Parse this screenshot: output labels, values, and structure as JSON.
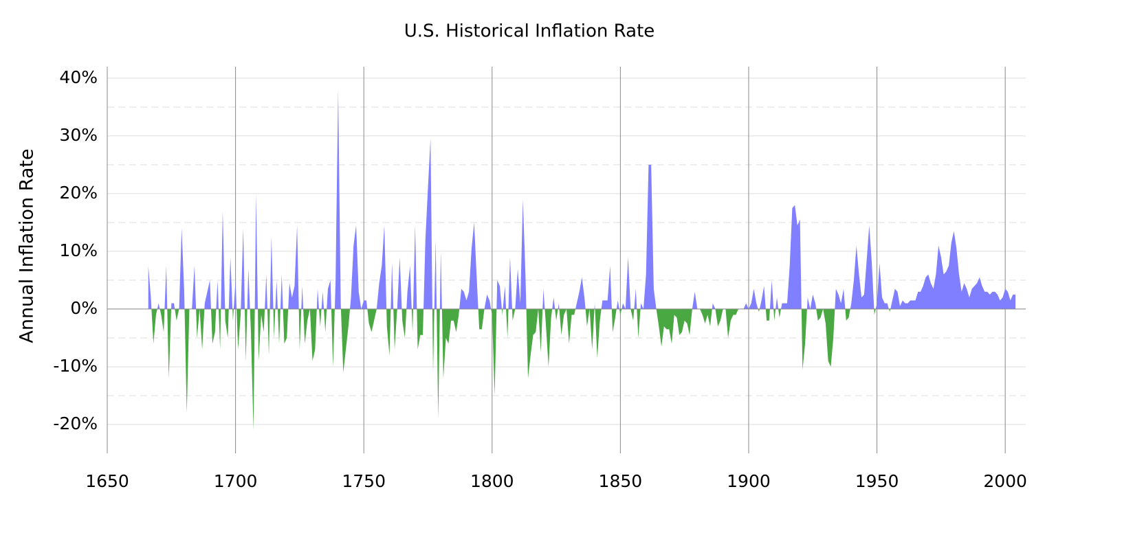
{
  "chart_data": {
    "type": "area",
    "title": "U.S. Historical Inflation Rate",
    "y_label": "Annual Inflation Rate",
    "xlim": [
      1650,
      2008
    ],
    "xticks": [
      1650,
      1700,
      1750,
      1800,
      1850,
      1900,
      1950,
      2000
    ],
    "ylim": [
      -25,
      42
    ],
    "yticks": [
      {
        "value": -20,
        "label": "-20%"
      },
      {
        "value": -10,
        "label": "-10%"
      },
      {
        "value": 0,
        "label": "0%"
      },
      {
        "value": 10,
        "label": "10%"
      },
      {
        "value": 20,
        "label": "20%"
      },
      {
        "value": 30,
        "label": "30%"
      },
      {
        "value": 40,
        "label": "40%"
      }
    ],
    "minor_yticks": [
      -15,
      -5,
      5,
      15,
      25,
      35
    ],
    "grid": true,
    "color": "#7f7fff",
    "negative_color": "#4aa842",
    "x": [
      1666,
      1667,
      1668,
      1669,
      1670,
      1671,
      1672,
      1673,
      1674,
      1675,
      1676,
      1677,
      1678,
      1679,
      1680,
      1681,
      1682,
      1683,
      1684,
      1685,
      1686,
      1687,
      1688,
      1689,
      1690,
      1691,
      1692,
      1693,
      1694,
      1695,
      1696,
      1697,
      1698,
      1699,
      1700,
      1701,
      1702,
      1703,
      1704,
      1705,
      1706,
      1707,
      1708,
      1709,
      1710,
      1711,
      1712,
      1713,
      1714,
      1715,
      1716,
      1717,
      1718,
      1719,
      1720,
      1721,
      1722,
      1723,
      1724,
      1725,
      1726,
      1727,
      1728,
      1729,
      1730,
      1731,
      1732,
      1733,
      1734,
      1735,
      1736,
      1737,
      1738,
      1739,
      1740,
      1741,
      1742,
      1743,
      1744,
      1745,
      1746,
      1747,
      1748,
      1749,
      1750,
      1751,
      1752,
      1753,
      1754,
      1755,
      1756,
      1757,
      1758,
      1759,
      1760,
      1761,
      1762,
      1763,
      1764,
      1765,
      1766,
      1767,
      1768,
      1769,
      1770,
      1771,
      1772,
      1773,
      1774,
      1775,
      1776,
      1777,
      1778,
      1779,
      1780,
      1781,
      1782,
      1783,
      1784,
      1785,
      1786,
      1787,
      1788,
      1789,
      1790,
      1791,
      1792,
      1793,
      1794,
      1795,
      1796,
      1797,
      1798,
      1799,
      1800,
      1801,
      1802,
      1803,
      1804,
      1805,
      1806,
      1807,
      1808,
      1809,
      1810,
      1811,
      1812,
      1813,
      1814,
      1815,
      1816,
      1817,
      1818,
      1819,
      1820,
      1821,
      1822,
      1823,
      1824,
      1825,
      1826,
      1827,
      1828,
      1829,
      1830,
      1831,
      1832,
      1833,
      1834,
      1835,
      1836,
      1837,
      1838,
      1839,
      1840,
      1841,
      1842,
      1843,
      1844,
      1845,
      1846,
      1847,
      1848,
      1849,
      1850,
      1851,
      1852,
      1853,
      1854,
      1855,
      1856,
      1857,
      1858,
      1859,
      1860,
      1861,
      1862,
      1863,
      1864,
      1865,
      1866,
      1867,
      1868,
      1869,
      1870,
      1871,
      1872,
      1873,
      1874,
      1875,
      1876,
      1877,
      1878,
      1879,
      1880,
      1881,
      1882,
      1883,
      1884,
      1885,
      1886,
      1887,
      1888,
      1889,
      1890,
      1891,
      1892,
      1893,
      1894,
      1895,
      1896,
      1897,
      1898,
      1899,
      1900,
      1901,
      1902,
      1903,
      1904,
      1905,
      1906,
      1907,
      1908,
      1909,
      1910,
      1911,
      1912,
      1913,
      1914,
      1915,
      1916,
      1917,
      1918,
      1919,
      1920,
      1921,
      1922,
      1923,
      1924,
      1925,
      1926,
      1927,
      1928,
      1929,
      1930,
      1931,
      1932,
      1933,
      1934,
      1935,
      1936,
      1937,
      1938,
      1939,
      1940,
      1941,
      1942,
      1943,
      1944,
      1945,
      1946,
      1947,
      1948,
      1949,
      1950,
      1951,
      1952,
      1953,
      1954,
      1955,
      1956,
      1957,
      1958,
      1959,
      1960,
      1961,
      1962,
      1963,
      1964,
      1965,
      1966,
      1967,
      1968,
      1969,
      1970,
      1971,
      1972,
      1973,
      1974,
      1975,
      1976,
      1977,
      1978,
      1979,
      1980,
      1981,
      1982,
      1983,
      1984,
      1985,
      1986,
      1987,
      1988,
      1989,
      1990,
      1991,
      1992,
      1993,
      1994,
      1995,
      1996,
      1997,
      1998,
      1999,
      2000,
      2001,
      2002,
      2003,
      2004
    ],
    "values": [
      7.5,
      2,
      -6,
      -1,
      1,
      -1,
      -4,
      7.5,
      -12,
      1,
      1,
      -2,
      0,
      14,
      3,
      -18,
      0,
      0,
      7.5,
      -5,
      0,
      -7,
      1,
      3,
      5,
      -6,
      -4,
      5,
      -7,
      17,
      -2,
      -5,
      9,
      -2,
      5,
      -7,
      -1,
      14,
      -9,
      7,
      -4,
      -21,
      20,
      -9,
      -1,
      -4,
      6,
      -8,
      12.5,
      -5,
      5,
      -6,
      6,
      -6,
      -5,
      4.5,
      2,
      4,
      14.5,
      -7,
      4,
      -6,
      -2,
      0,
      -9,
      -7,
      3.5,
      -3,
      3,
      -4,
      3.5,
      5,
      -10,
      5,
      38,
      1,
      -11,
      -7,
      -3,
      2,
      11,
      14.5,
      3,
      0,
      1.5,
      1.5,
      -2.5,
      -4,
      -2,
      0,
      4.5,
      7.5,
      14.5,
      -3,
      -8,
      8,
      -7,
      0,
      9,
      -2,
      -5,
      3,
      7.5,
      -4,
      14.5,
      -7,
      -4.5,
      -4.5,
      12,
      21,
      29.5,
      -11,
      12,
      -19,
      10,
      -12,
      -5,
      -6,
      -2,
      -2,
      -4,
      -1,
      3.5,
      3,
      1.5,
      3,
      10.5,
      15,
      5.5,
      -3.5,
      -3.5,
      0,
      2.5,
      1.5,
      -1,
      -15,
      5,
      4,
      -1,
      4,
      -5,
      9,
      -2,
      0,
      7,
      1,
      19,
      6,
      -12,
      -8,
      -4.5,
      -4,
      0,
      -7.5,
      3.5,
      -3,
      -10,
      -1.5,
      2,
      -2,
      1,
      -4.5,
      -1,
      0,
      -6,
      -1,
      -1,
      1,
      3,
      5.5,
      2,
      -3,
      0,
      -7,
      1,
      -8.5,
      -2,
      1.5,
      1.5,
      1.5,
      7.5,
      -4,
      -1.5,
      1.5,
      -1,
      1,
      0,
      9,
      0,
      -2,
      3.5,
      -5,
      1,
      0,
      6,
      25,
      25,
      3.5,
      0,
      -3,
      -6.5,
      -3,
      -3.5,
      -3.5,
      -6,
      -1,
      -1.5,
      -4.5,
      -4,
      -2,
      -2.5,
      -4.5,
      0,
      3,
      0,
      0,
      -1,
      -2.5,
      -1,
      -3,
      1,
      0,
      -3,
      -2,
      0,
      0,
      -5,
      -2,
      -1,
      -1,
      0,
      0,
      0,
      1,
      0,
      1,
      3.5,
      1,
      -0.5,
      1.5,
      4,
      -2,
      -2,
      5,
      -2,
      2,
      -1.5,
      1,
      1,
      1,
      7.5,
      17.5,
      18,
      14.5,
      15.5,
      -10.5,
      -6,
      2,
      0,
      2.5,
      1,
      -2,
      -1.5,
      0,
      -2.5,
      -9,
      -10,
      -5,
      3.5,
      2.5,
      1,
      3.5,
      -2,
      -1.5,
      1,
      5,
      11,
      6,
      2,
      2.5,
      8.5,
      14.5,
      8,
      -1,
      1,
      8,
      2,
      1,
      1,
      -0.5,
      1.5,
      3.5,
      3,
      0.5,
      1.5,
      1,
      1,
      1.5,
      1.5,
      1.5,
      3,
      3,
      4,
      5.5,
      6,
      4.5,
      3.5,
      6,
      11,
      9,
      6,
      6.5,
      7.5,
      11.5,
      13.5,
      10.5,
      6,
      3,
      4.5,
      3.5,
      2,
      3.5,
      4,
      4.5,
      5.5,
      4,
      3,
      3,
      2.5,
      3,
      3,
      2.5,
      1.5,
      2,
      3.5,
      3,
      1.5,
      2.5,
      2.5
    ]
  }
}
